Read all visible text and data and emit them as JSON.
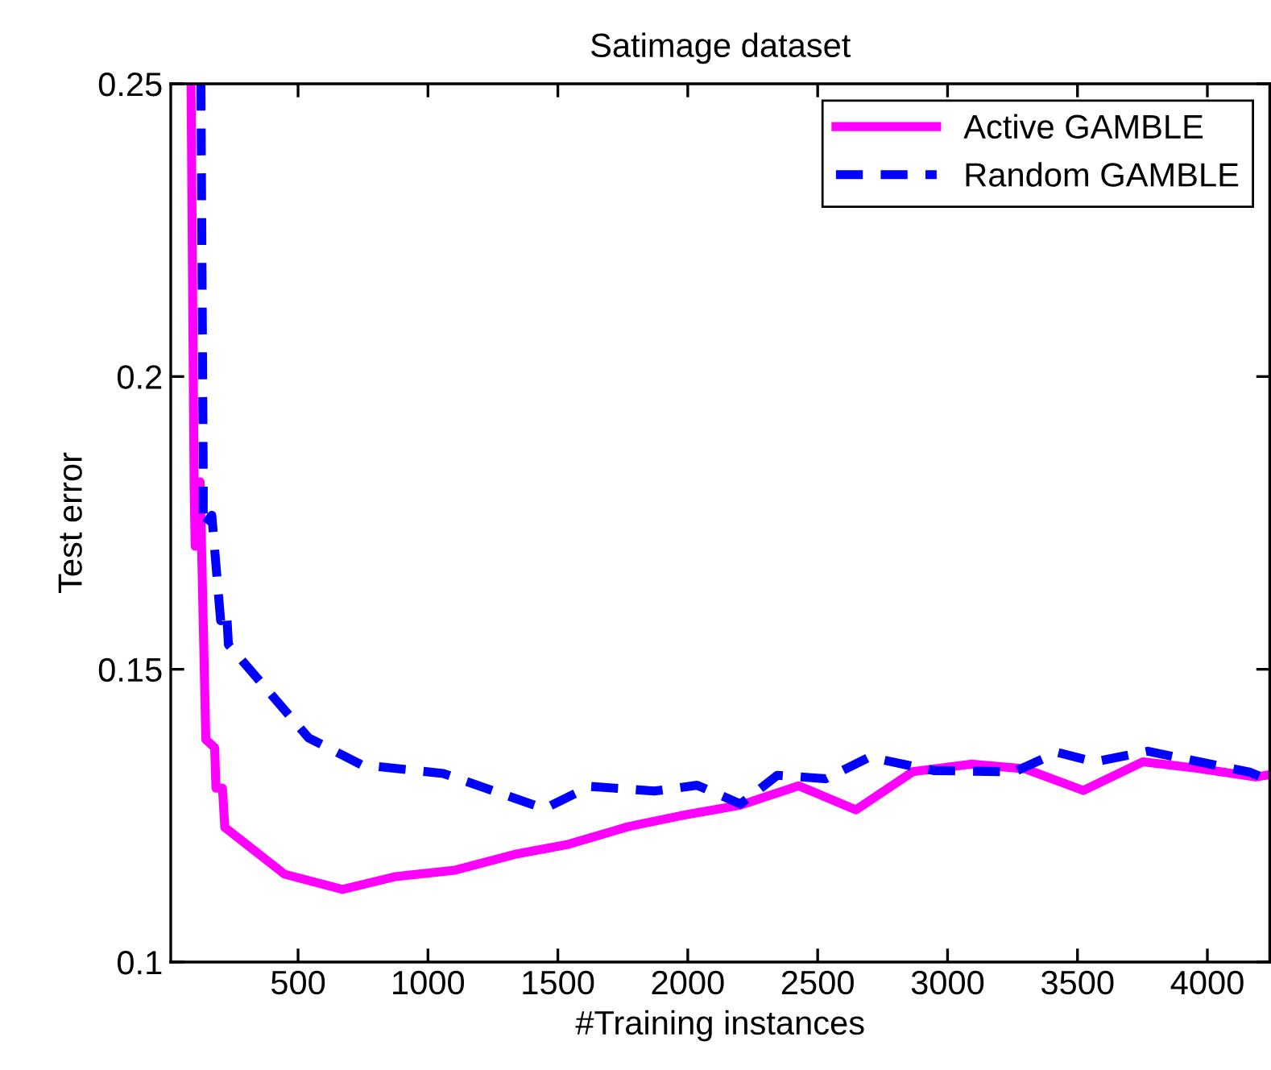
{
  "chart_data": {
    "type": "line",
    "title": "Satimage dataset",
    "xlabel": "#Training instances",
    "ylabel": "Test error",
    "xlim": [
      10,
      4240
    ],
    "ylim": [
      0.1,
      0.25
    ],
    "xticks": [
      500,
      1000,
      1500,
      2000,
      2500,
      3000,
      3500,
      4000
    ],
    "yticks": [
      0.1,
      0.15,
      0.2,
      0.25
    ],
    "grid": false,
    "legend": "top right",
    "marker": "none",
    "series": [
      {
        "name": "Active GAMBLE",
        "color": "#ff00ff",
        "line_style": "solid",
        "x": [
          88,
          100,
          104,
          123,
          145,
          179,
          184,
          209,
          218,
          448,
          671,
          876,
          1105,
          1335,
          1540,
          1769,
          1974,
          2203,
          2427,
          2647,
          2866,
          3089,
          3299,
          3523,
          3752,
          3960,
          4186,
          4240
        ],
        "values": [
          0.25,
          0.181,
          0.171,
          0.182,
          0.138,
          0.1366,
          0.1297,
          0.1297,
          0.123,
          0.115,
          0.1124,
          0.1146,
          0.1157,
          0.1184,
          0.1201,
          0.1231,
          0.125,
          0.1268,
          0.1301,
          0.126,
          0.1325,
          0.1338,
          0.133,
          0.1293,
          0.1342,
          0.1331,
          0.1316,
          0.132
        ]
      },
      {
        "name": "Random GAMBLE",
        "color": "#0000ff",
        "line_style": "dashed",
        "x": [
          126,
          135,
          135,
          168,
          202,
          225,
          232,
          540,
          743,
          1059,
          1169,
          1448,
          1624,
          1872,
          2036,
          2203,
          2345,
          2531,
          2699,
          2947,
          3257,
          3422,
          3566,
          3771,
          4165,
          4240
        ],
        "values": [
          0.25,
          0.1833,
          0.1743,
          0.1763,
          0.1583,
          0.1597,
          0.1542,
          0.1383,
          0.1337,
          0.1322,
          0.1305,
          0.1262,
          0.13,
          0.1292,
          0.1302,
          0.127,
          0.1319,
          0.1313,
          0.135,
          0.1327,
          0.1325,
          0.1358,
          0.1342,
          0.136,
          0.1324,
          0.131
        ]
      }
    ]
  }
}
